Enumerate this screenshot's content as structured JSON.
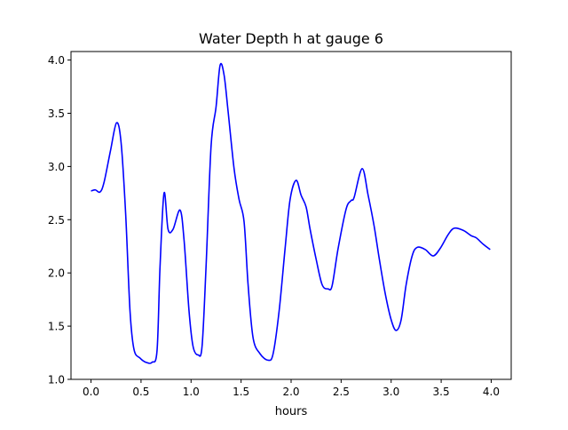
{
  "chart_data": {
    "type": "line",
    "title": "Water Depth h at gauge 6",
    "xlabel": "hours",
    "ylabel": "",
    "xlim": [
      -0.2,
      4.2
    ],
    "ylim": [
      1.0,
      4.08
    ],
    "xticks": [
      "0.0",
      "0.5",
      "1.0",
      "1.5",
      "2.0",
      "2.5",
      "3.0",
      "3.5",
      "4.0"
    ],
    "yticks": [
      "1.0",
      "1.5",
      "2.0",
      "2.5",
      "3.0",
      "3.5",
      "4.0"
    ],
    "grid": false,
    "series": [
      {
        "name": "h",
        "color": "#0000ff",
        "x": [
          0,
          0.044,
          0.09,
          0.13,
          0.195,
          0.255,
          0.3,
          0.346,
          0.39,
          0.43,
          0.49,
          0.55,
          0.61,
          0.66,
          0.69,
          0.73,
          0.77,
          0.82,
          0.89,
          0.93,
          0.98,
          1.02,
          1.07,
          1.11,
          1.15,
          1.2,
          1.25,
          1.29,
          1.33,
          1.37,
          1.43,
          1.48,
          1.53,
          1.57,
          1.62,
          1.69,
          1.77,
          1.82,
          1.88,
          1.94,
          1.99,
          2.05,
          2.1,
          2.15,
          2.19,
          2.25,
          2.31,
          2.37,
          2.41,
          2.47,
          2.55,
          2.6,
          2.63,
          2.71,
          2.77,
          2.83,
          2.88,
          2.94,
          3.0,
          3.05,
          3.1,
          3.15,
          3.21,
          3.26,
          3.34,
          3.42,
          3.49,
          3.57,
          3.63,
          3.72,
          3.8,
          3.85,
          3.92,
          3.99
        ],
        "y": [
          2.77,
          2.78,
          2.76,
          2.85,
          3.15,
          3.41,
          3.23,
          2.56,
          1.64,
          1.28,
          1.2,
          1.16,
          1.16,
          1.27,
          2.06,
          2.75,
          2.41,
          2.41,
          2.59,
          2.31,
          1.64,
          1.31,
          1.23,
          1.31,
          2.06,
          3.19,
          3.56,
          3.95,
          3.86,
          3.52,
          2.98,
          2.69,
          2.48,
          1.89,
          1.39,
          1.24,
          1.18,
          1.24,
          1.64,
          2.23,
          2.69,
          2.87,
          2.73,
          2.62,
          2.41,
          2.13,
          1.89,
          1.85,
          1.88,
          2.23,
          2.6,
          2.68,
          2.71,
          2.98,
          2.73,
          2.44,
          2.14,
          1.81,
          1.56,
          1.46,
          1.56,
          1.89,
          2.16,
          2.24,
          2.22,
          2.16,
          2.23,
          2.36,
          2.42,
          2.4,
          2.35,
          2.33,
          2.27,
          2.22
        ]
      }
    ]
  }
}
